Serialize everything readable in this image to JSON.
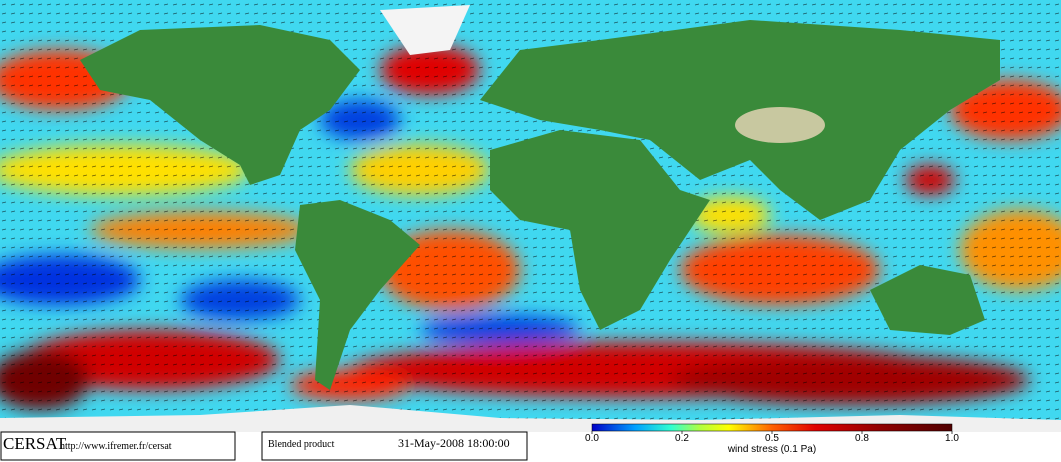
{
  "footer": {
    "logo": "CERSAT",
    "url": "http://www.ifremer.fr/cersat",
    "product": "Blended product",
    "timestamp": "31-May-2008 18:00:00"
  },
  "colorbar": {
    "label": "wind stress (0.1 Pa)",
    "ticks": [
      {
        "value": 0,
        "label": "0.0"
      },
      0.2,
      0.5,
      0.8,
      {
        "value": 1,
        "label": "1.0"
      }
    ]
  }
}
